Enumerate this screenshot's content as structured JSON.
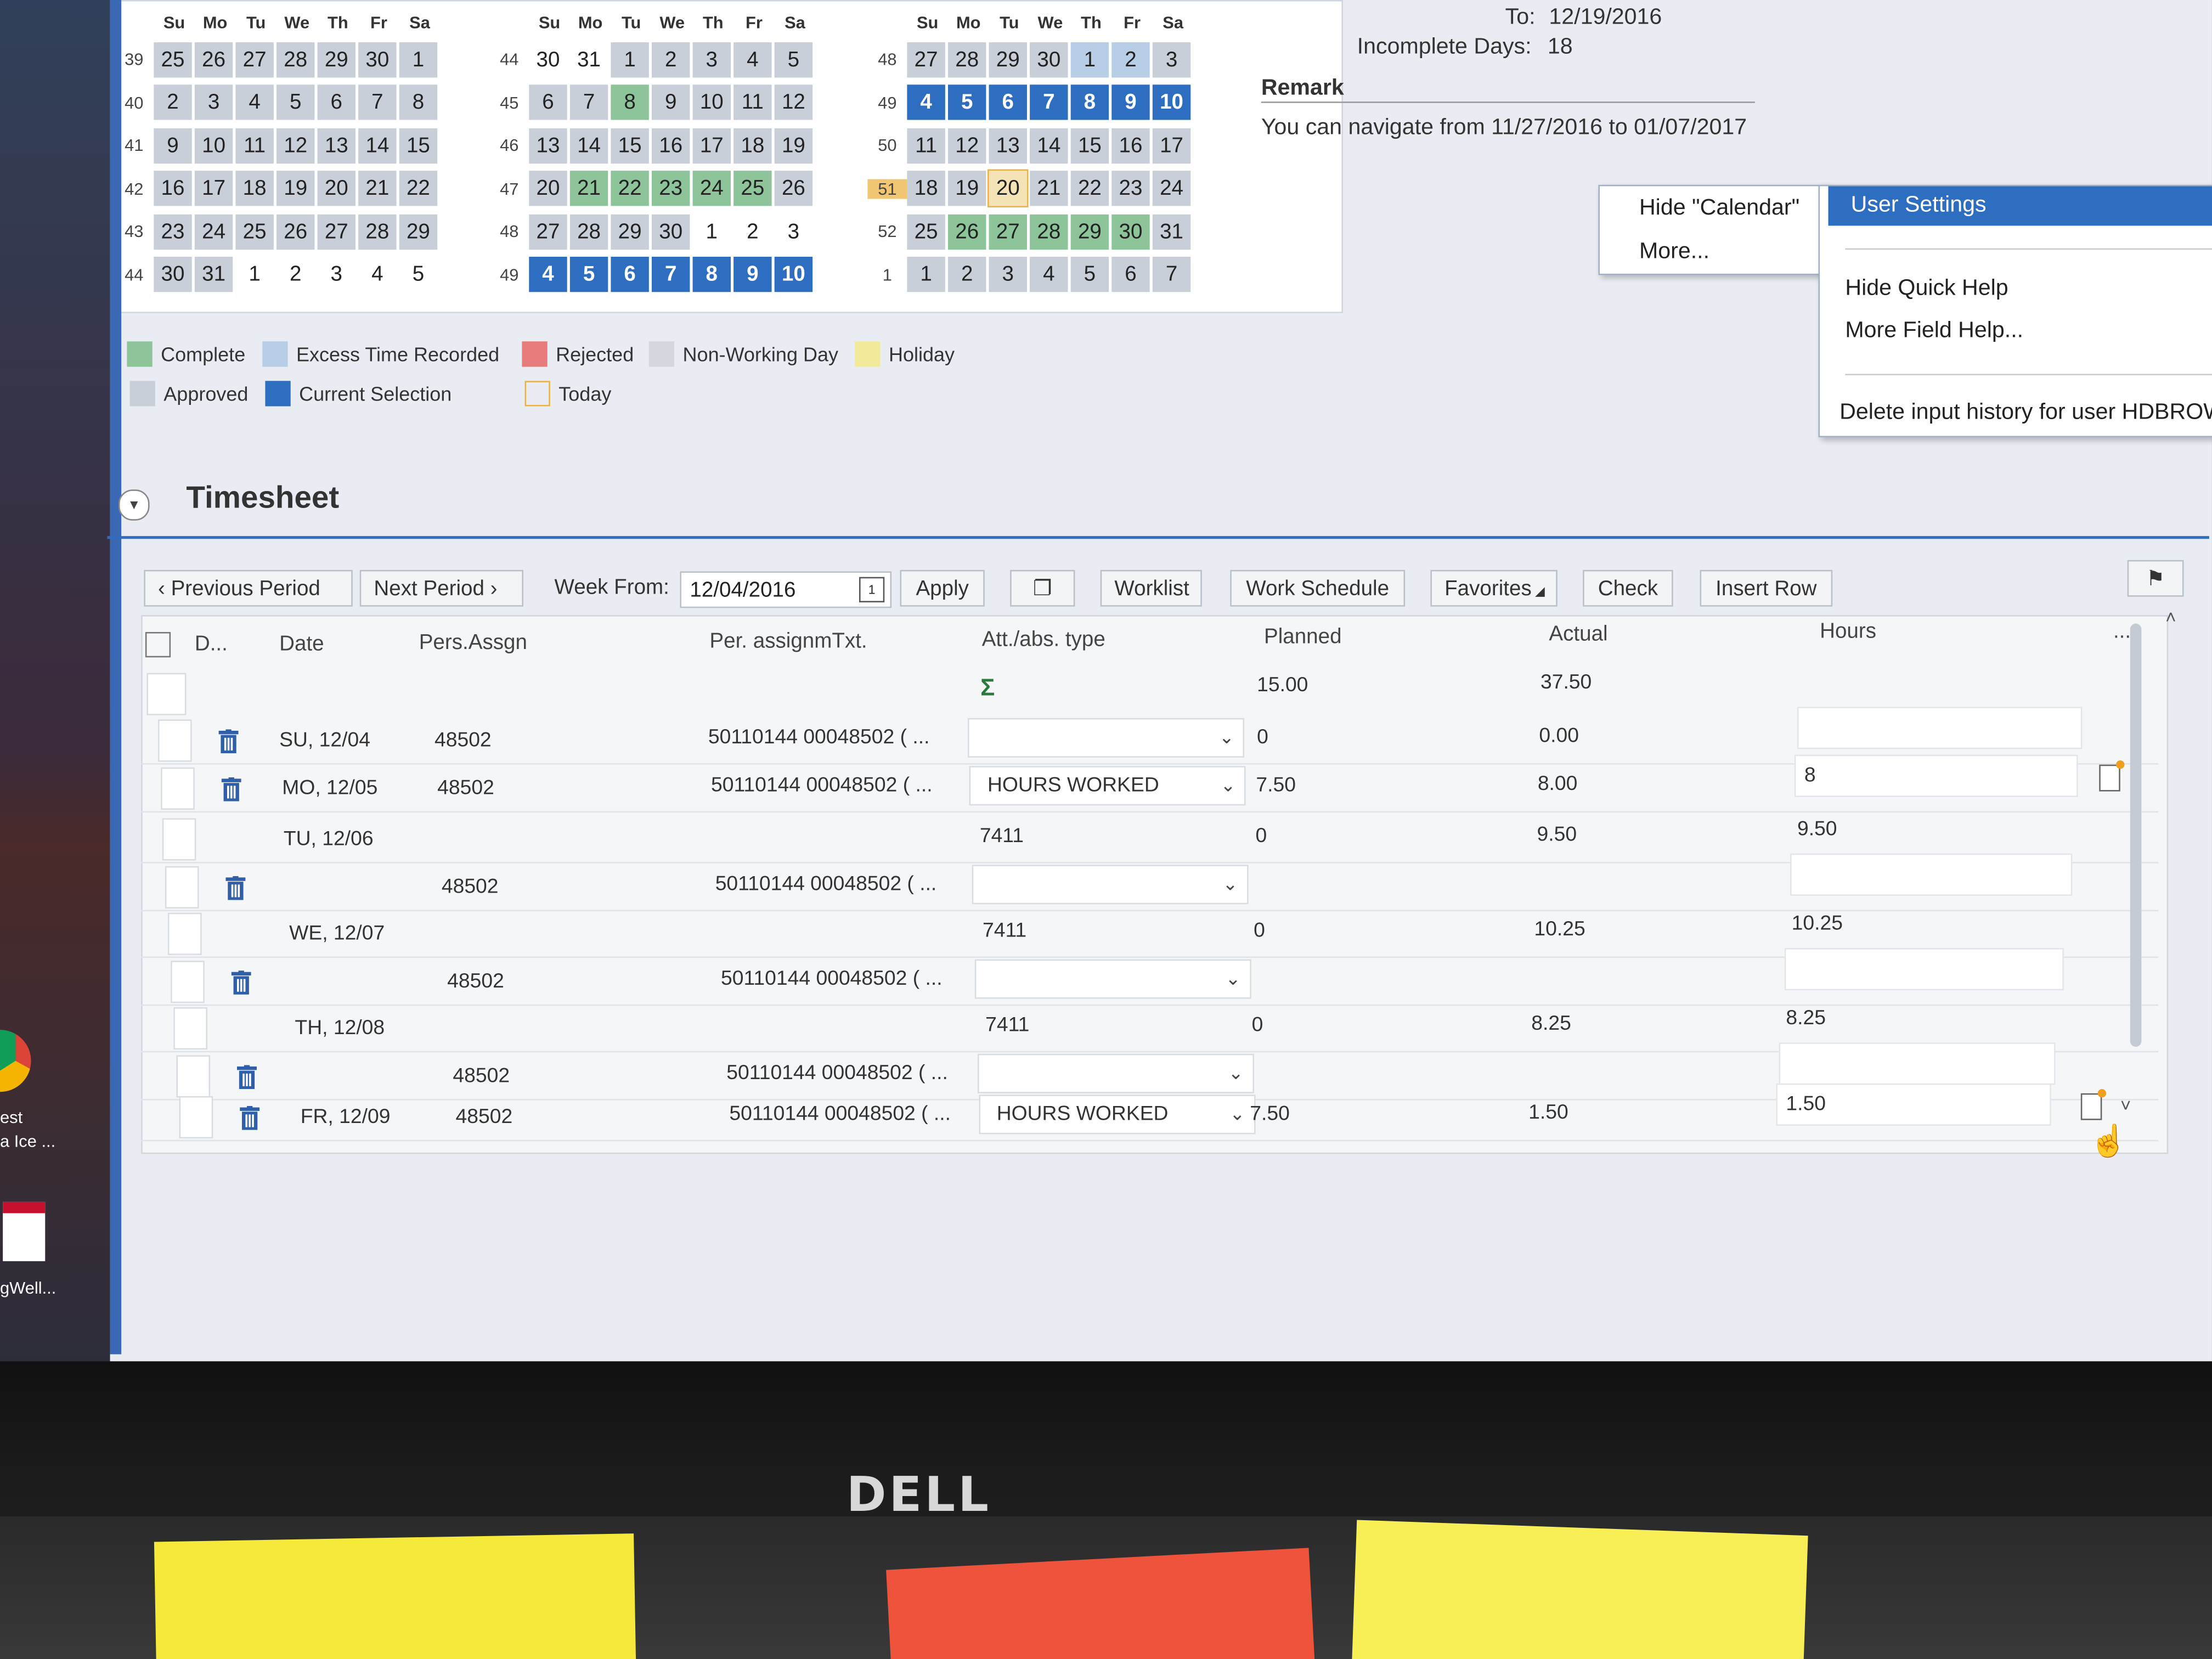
{
  "calendar": {
    "day_headers": [
      "Su",
      "Mo",
      "Tu",
      "We",
      "Th",
      "Fr",
      "Sa"
    ],
    "months": [
      {
        "weeks": [
          {
            "num": "39",
            "days": [
              {
                "d": "25",
                "s": "appr"
              },
              {
                "d": "26",
                "s": "appr"
              },
              {
                "d": "27",
                "s": "appr"
              },
              {
                "d": "28",
                "s": "appr"
              },
              {
                "d": "29",
                "s": "appr"
              },
              {
                "d": "30",
                "s": "appr"
              },
              {
                "d": "1",
                "s": "appr"
              }
            ]
          },
          {
            "num": "40",
            "days": [
              {
                "d": "2",
                "s": "appr"
              },
              {
                "d": "3",
                "s": "appr"
              },
              {
                "d": "4",
                "s": "appr"
              },
              {
                "d": "5",
                "s": "appr"
              },
              {
                "d": "6",
                "s": "appr"
              },
              {
                "d": "7",
                "s": "appr"
              },
              {
                "d": "8",
                "s": "appr"
              }
            ]
          },
          {
            "num": "41",
            "days": [
              {
                "d": "9",
                "s": "appr"
              },
              {
                "d": "10",
                "s": "appr"
              },
              {
                "d": "11",
                "s": "appr"
              },
              {
                "d": "12",
                "s": "appr"
              },
              {
                "d": "13",
                "s": "appr"
              },
              {
                "d": "14",
                "s": "appr"
              },
              {
                "d": "15",
                "s": "appr"
              }
            ]
          },
          {
            "num": "42",
            "days": [
              {
                "d": "16",
                "s": "appr"
              },
              {
                "d": "17",
                "s": "appr"
              },
              {
                "d": "18",
                "s": "appr"
              },
              {
                "d": "19",
                "s": "appr"
              },
              {
                "d": "20",
                "s": "appr"
              },
              {
                "d": "21",
                "s": "appr"
              },
              {
                "d": "22",
                "s": "appr"
              }
            ]
          },
          {
            "num": "43",
            "days": [
              {
                "d": "23",
                "s": "appr"
              },
              {
                "d": "24",
                "s": "appr"
              },
              {
                "d": "25",
                "s": "appr"
              },
              {
                "d": "26",
                "s": "appr"
              },
              {
                "d": "27",
                "s": "appr"
              },
              {
                "d": "28",
                "s": "appr"
              },
              {
                "d": "29",
                "s": "appr"
              }
            ]
          },
          {
            "num": "44",
            "days": [
              {
                "d": "30",
                "s": "appr"
              },
              {
                "d": "31",
                "s": "appr"
              },
              {
                "d": "1",
                "s": "none"
              },
              {
                "d": "2",
                "s": "none"
              },
              {
                "d": "3",
                "s": "none"
              },
              {
                "d": "4",
                "s": "none"
              },
              {
                "d": "5",
                "s": "none"
              }
            ]
          }
        ]
      },
      {
        "weeks": [
          {
            "num": "44",
            "days": [
              {
                "d": "30",
                "s": "none"
              },
              {
                "d": "31",
                "s": "none"
              },
              {
                "d": "1",
                "s": "appr"
              },
              {
                "d": "2",
                "s": "appr"
              },
              {
                "d": "3",
                "s": "appr"
              },
              {
                "d": "4",
                "s": "appr"
              },
              {
                "d": "5",
                "s": "appr"
              }
            ]
          },
          {
            "num": "45",
            "days": [
              {
                "d": "6",
                "s": "appr"
              },
              {
                "d": "7",
                "s": "appr"
              },
              {
                "d": "8",
                "s": "comp"
              },
              {
                "d": "9",
                "s": "appr"
              },
              {
                "d": "10",
                "s": "appr"
              },
              {
                "d": "11",
                "s": "appr"
              },
              {
                "d": "12",
                "s": "appr"
              }
            ]
          },
          {
            "num": "46",
            "days": [
              {
                "d": "13",
                "s": "appr"
              },
              {
                "d": "14",
                "s": "appr"
              },
              {
                "d": "15",
                "s": "appr"
              },
              {
                "d": "16",
                "s": "appr"
              },
              {
                "d": "17",
                "s": "appr"
              },
              {
                "d": "18",
                "s": "appr"
              },
              {
                "d": "19",
                "s": "appr"
              }
            ]
          },
          {
            "num": "47",
            "days": [
              {
                "d": "20",
                "s": "appr"
              },
              {
                "d": "21",
                "s": "comp"
              },
              {
                "d": "22",
                "s": "comp"
              },
              {
                "d": "23",
                "s": "comp"
              },
              {
                "d": "24",
                "s": "comp"
              },
              {
                "d": "25",
                "s": "comp"
              },
              {
                "d": "26",
                "s": "appr"
              }
            ]
          },
          {
            "num": "48",
            "days": [
              {
                "d": "27",
                "s": "appr"
              },
              {
                "d": "28",
                "s": "appr"
              },
              {
                "d": "29",
                "s": "appr"
              },
              {
                "d": "30",
                "s": "appr"
              },
              {
                "d": "1",
                "s": "none"
              },
              {
                "d": "2",
                "s": "none"
              },
              {
                "d": "3",
                "s": "none"
              }
            ]
          },
          {
            "num": "49",
            "days": [
              {
                "d": "4",
                "s": "sel"
              },
              {
                "d": "5",
                "s": "sel"
              },
              {
                "d": "6",
                "s": "sel"
              },
              {
                "d": "7",
                "s": "sel"
              },
              {
                "d": "8",
                "s": "sel"
              },
              {
                "d": "9",
                "s": "sel"
              },
              {
                "d": "10",
                "s": "sel"
              }
            ]
          }
        ]
      },
      {
        "weeks": [
          {
            "num": "48",
            "days": [
              {
                "d": "27",
                "s": "appr"
              },
              {
                "d": "28",
                "s": "appr"
              },
              {
                "d": "29",
                "s": "appr"
              },
              {
                "d": "30",
                "s": "appr"
              },
              {
                "d": "1",
                "s": "excess"
              },
              {
                "d": "2",
                "s": "excess"
              },
              {
                "d": "3",
                "s": "appr"
              }
            ]
          },
          {
            "num": "49",
            "days": [
              {
                "d": "4",
                "s": "sel"
              },
              {
                "d": "5",
                "s": "sel"
              },
              {
                "d": "6",
                "s": "sel"
              },
              {
                "d": "7",
                "s": "sel"
              },
              {
                "d": "8",
                "s": "sel"
              },
              {
                "d": "9",
                "s": "sel"
              },
              {
                "d": "10",
                "s": "sel"
              }
            ]
          },
          {
            "num": "50",
            "days": [
              {
                "d": "11",
                "s": "appr"
              },
              {
                "d": "12",
                "s": "appr"
              },
              {
                "d": "13",
                "s": "appr"
              },
              {
                "d": "14",
                "s": "appr"
              },
              {
                "d": "15",
                "s": "appr"
              },
              {
                "d": "16",
                "s": "appr"
              },
              {
                "d": "17",
                "s": "appr"
              }
            ]
          },
          {
            "num": "51",
            "days": [
              {
                "d": "18",
                "s": "appr"
              },
              {
                "d": "19",
                "s": "appr"
              },
              {
                "d": "20",
                "s": "today"
              },
              {
                "d": "21",
                "s": "appr"
              },
              {
                "d": "22",
                "s": "appr"
              },
              {
                "d": "23",
                "s": "appr"
              },
              {
                "d": "24",
                "s": "appr"
              }
            ]
          },
          {
            "num": "52",
            "days": [
              {
                "d": "25",
                "s": "appr"
              },
              {
                "d": "26",
                "s": "comp"
              },
              {
                "d": "27",
                "s": "comp"
              },
              {
                "d": "28",
                "s": "comp"
              },
              {
                "d": "29",
                "s": "comp"
              },
              {
                "d": "30",
                "s": "comp"
              },
              {
                "d": "31",
                "s": "appr"
              }
            ]
          },
          {
            "num": "1",
            "days": [
              {
                "d": "1",
                "s": "appr"
              },
              {
                "d": "2",
                "s": "appr"
              },
              {
                "d": "3",
                "s": "appr"
              },
              {
                "d": "4",
                "s": "appr"
              },
              {
                "d": "5",
                "s": "appr"
              },
              {
                "d": "6",
                "s": "appr"
              },
              {
                "d": "7",
                "s": "appr"
              }
            ]
          }
        ]
      }
    ],
    "highlighted_week": "51"
  },
  "legend": {
    "complete": "Complete",
    "excess": "Excess Time Recorded",
    "rejected": "Rejected",
    "nonworking": "Non-Working Day",
    "holiday": "Holiday",
    "approved": "Approved",
    "current": "Current Selection",
    "today": "Today"
  },
  "info": {
    "to_label": "To:",
    "to_value": "12/19/2016",
    "incomplete_label": "Incomplete Days:",
    "incomplete_value": "18",
    "remark_title": "Remark",
    "remark_text": "You can navigate from 11/27/2016 to 01/07/2017"
  },
  "context_menu": {
    "hide_calendar": "Hide \"Calendar\"",
    "more": "More...",
    "user_settings": "User Settings",
    "hide_quick_help": "Hide Quick Help",
    "more_field_help": "More Field Help...",
    "delete_history": "Delete input history for user HDBROW"
  },
  "timesheet": {
    "title": "Timesheet",
    "toolbar": {
      "prev": "Previous Period",
      "next": "Next Period",
      "week_from_label": "Week From:",
      "week_from_value": "12/04/2016",
      "apply": "Apply",
      "worklist": "Worklist",
      "work_schedule": "Work Schedule",
      "favorites": "Favorites",
      "check": "Check",
      "insert_row": "Insert Row"
    },
    "columns": {
      "d": "D...",
      "date": "Date",
      "pers_assgn": "Pers.Assgn",
      "per_assign_txt": "Per. assignmTxt.",
      "att_abs": "Att./abs. type",
      "planned": "Planned",
      "actual": "Actual",
      "hours": "Hours",
      "more": "..."
    },
    "totals": {
      "planned": "15.00",
      "actual": "37.50"
    },
    "rows": [
      {
        "trash": true,
        "date": "SU, 12/04",
        "pers": "48502",
        "txt": "50110144 00048502 ( ...",
        "att": "",
        "dd": true,
        "planned": "0",
        "actual": "0.00",
        "hours": "",
        "hinput": true,
        "note": false
      },
      {
        "trash": true,
        "date": "MO, 12/05",
        "pers": "48502",
        "txt": "50110144 00048502 ( ...",
        "att": "HOURS WORKED",
        "dd": true,
        "planned": "7.50",
        "actual": "8.00",
        "hours": "8",
        "hinput": true,
        "note": true
      },
      {
        "trash": false,
        "date": "TU, 12/06",
        "pers": "",
        "txt": "",
        "att": "7411",
        "dd": false,
        "planned": "0",
        "actual": "9.50",
        "hours": "9.50",
        "hinput": false,
        "note": false
      },
      {
        "trash": true,
        "date": "",
        "pers": "48502",
        "txt": "50110144 00048502 ( ...",
        "att": "",
        "dd": true,
        "planned": "",
        "actual": "",
        "hours": "",
        "hinput": true,
        "note": false
      },
      {
        "trash": false,
        "date": "WE, 12/07",
        "pers": "",
        "txt": "",
        "att": "7411",
        "dd": false,
        "planned": "0",
        "actual": "10.25",
        "hours": "10.25",
        "hinput": false,
        "note": false
      },
      {
        "trash": true,
        "date": "",
        "pers": "48502",
        "txt": "50110144 00048502 ( ...",
        "att": "",
        "dd": true,
        "planned": "",
        "actual": "",
        "hours": "",
        "hinput": true,
        "note": false
      },
      {
        "trash": false,
        "date": "TH, 12/08",
        "pers": "",
        "txt": "",
        "att": "7411",
        "dd": false,
        "planned": "0",
        "actual": "8.25",
        "hours": "8.25",
        "hinput": false,
        "note": false
      },
      {
        "trash": true,
        "date": "",
        "pers": "48502",
        "txt": "50110144 00048502 ( ...",
        "att": "",
        "dd": true,
        "planned": "",
        "actual": "",
        "hours": "",
        "hinput": true,
        "note": false
      },
      {
        "trash": true,
        "date": "FR, 12/09",
        "pers": "48502",
        "txt": "50110144 00048502 ( ...",
        "att": "HOURS WORKED",
        "dd": true,
        "planned": "7.50",
        "actual": "1.50",
        "hours": "1.50",
        "hinput": true,
        "note": true
      }
    ]
  },
  "desktop": {
    "icon_labels": [
      "est",
      "a Ice ...",
      "gWell..."
    ]
  },
  "bezel": {
    "brand": "DELL"
  },
  "colors": {
    "selection": "#2e6ec0",
    "complete": "#8ec49a",
    "approved": "#c9cfd9",
    "excess": "#b8cde6",
    "rejected": "#e77a7a",
    "holiday": "#f2ea9a",
    "today_border": "#e8b24a"
  }
}
